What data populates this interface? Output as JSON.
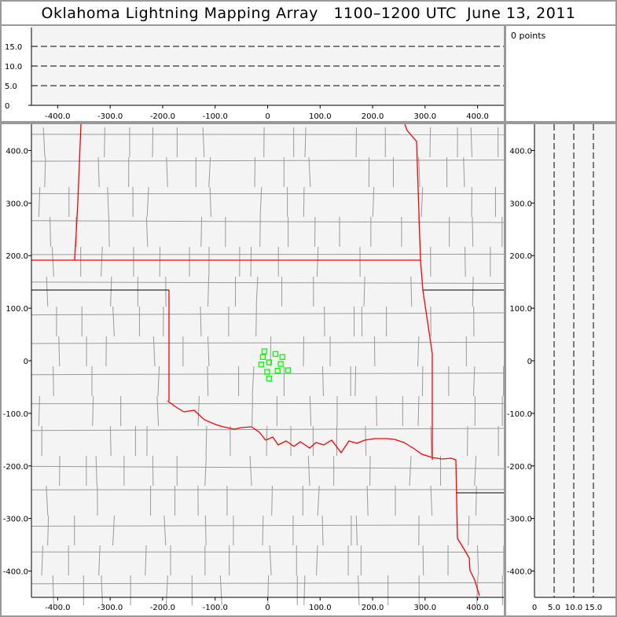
{
  "title": "Oklahoma Lightning Mapping Array   1100–1200 UTC  June 13, 2011",
  "points_label": "0 points",
  "colors": {
    "state_border": "#ff0000",
    "county_border": "#999999",
    "plot_bg": "#f4f4f4",
    "source_marker": "#00ff00"
  },
  "chart_data": {
    "type": "scatter",
    "plan_view": {
      "xlim": [
        -450,
        450
      ],
      "ylim": [
        -450,
        450
      ],
      "xticks": [
        "-400.0",
        "-300.0",
        "-200.0",
        "-100.0",
        "0",
        "100.0",
        "200.0",
        "300.0",
        "400.0"
      ],
      "yticks": [
        "-400.0",
        "-300.0",
        "-200.0",
        "-100.0",
        "0",
        "100.0",
        "200.0",
        "300.0",
        "400.0"
      ],
      "points": [
        [
          -6,
          18
        ],
        [
          -9,
          7
        ],
        [
          15,
          13
        ],
        [
          28,
          7
        ],
        [
          -12,
          -7
        ],
        [
          3,
          -3
        ],
        [
          25,
          -6
        ],
        [
          -1,
          -21
        ],
        [
          19,
          -19
        ],
        [
          39,
          -18
        ],
        [
          3,
          -34
        ]
      ]
    },
    "altitude_x_view": {
      "ylim": [
        0,
        20
      ],
      "yticks": [
        "0",
        "5.0",
        "10.0",
        "15.0"
      ]
    },
    "altitude_y_view": {
      "xlim": [
        0,
        20
      ],
      "xticks": [
        "0",
        "5.0",
        "10.0",
        "15.0"
      ]
    }
  }
}
